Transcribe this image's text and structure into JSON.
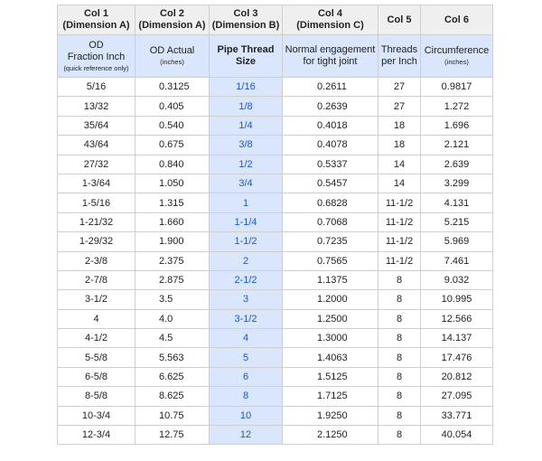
{
  "table": {
    "header": [
      {
        "title": "Col 1",
        "subtitle": "(Dimension A)"
      },
      {
        "title": "Col 2",
        "subtitle": "(Dimension A)"
      },
      {
        "title": "Col 3",
        "subtitle": "(Dimension B)"
      },
      {
        "title": "Col 4",
        "subtitle": "(Dimension C)"
      },
      {
        "title": "Col 5"
      },
      {
        "title": "Col 6"
      }
    ],
    "subheader": [
      {
        "lines": [
          "OD",
          "Fraction Inch"
        ],
        "note": "(quick reference only)"
      },
      {
        "lines": [
          "OD Actual"
        ],
        "note": "(inches)"
      },
      {
        "lines": [
          "Pipe Thread",
          "Size"
        ]
      },
      {
        "lines": [
          "Normal engagement",
          "for tight joint"
        ]
      },
      {
        "lines": [
          "Threads",
          "per Inch"
        ]
      },
      {
        "lines": [
          "Circumference"
        ],
        "note": "(inches)"
      }
    ],
    "rows": [
      [
        "5/16",
        "0.3125",
        "1/16",
        "0.2611",
        "27",
        "0.9817"
      ],
      [
        "13/32",
        "0.405",
        "1/8",
        "0.2639",
        "27",
        "1.272"
      ],
      [
        "35/64",
        "0.540",
        "1/4",
        "0.4018",
        "18",
        "1.696"
      ],
      [
        "43/64",
        "0.675",
        "3/8",
        "0.4078",
        "18",
        "2.121"
      ],
      [
        "27/32",
        "0.840",
        "1/2",
        "0.5337",
        "14",
        "2.639"
      ],
      [
        "1-3/64",
        "1.050",
        "3/4",
        "0.5457",
        "14",
        "3.299"
      ],
      [
        "1-5/16",
        "1.315",
        "1",
        "0.6828",
        "11-1/2",
        "4.131"
      ],
      [
        "1-21/32",
        "1.660",
        "1-1/4",
        "0.7068",
        "11-1/2",
        "5.215"
      ],
      [
        "1-29/32",
        "1.900",
        "1-1/2",
        "0.7235",
        "11-1/2",
        "5.969"
      ],
      [
        "2-3/8",
        "2.375",
        "2",
        "0.7565",
        "11-1/2",
        "7.461"
      ],
      [
        "2-7/8",
        "2.875",
        "2-1/2",
        "1.1375",
        "8",
        "9.032"
      ],
      [
        "3-1/2",
        "3.5",
        "3",
        "1.2000",
        "8",
        "10.995"
      ],
      [
        "4",
        "4.0",
        "3-1/2",
        "1.2500",
        "8",
        "12.566"
      ],
      [
        "4-1/2",
        "4.5",
        "4",
        "1.3000",
        "8",
        "14.137"
      ],
      [
        "5-5/8",
        "5.563",
        "5",
        "1.4063",
        "8",
        "17.476"
      ],
      [
        "6-5/8",
        "6.625",
        "6",
        "1.5125",
        "8",
        "20.812"
      ],
      [
        "8-5/8",
        "8.625",
        "8",
        "1.7125",
        "8",
        "27.095"
      ],
      [
        "10-3/4",
        "10.75",
        "10",
        "1.9250",
        "8",
        "33.771"
      ],
      [
        "12-3/4",
        "12.75",
        "12",
        "2.1250",
        "8",
        "40.054"
      ]
    ]
  }
}
